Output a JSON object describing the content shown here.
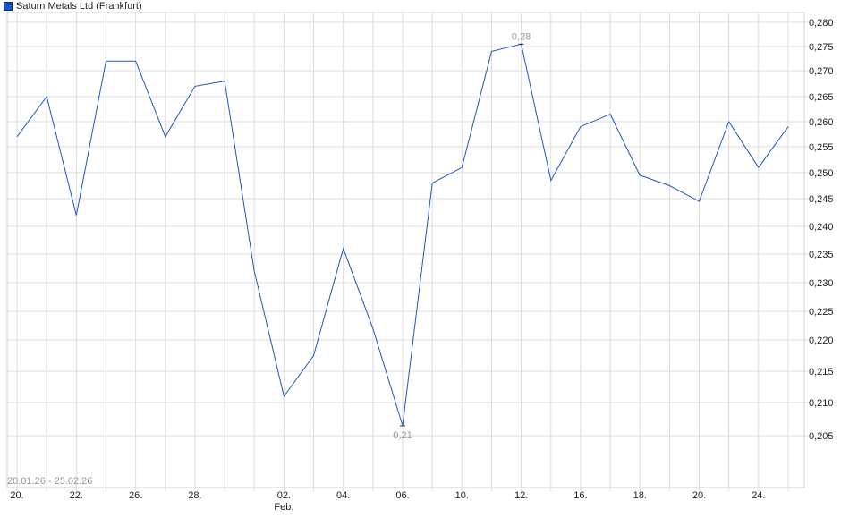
{
  "legend": {
    "label": "Saturn Metals Ltd (Frankfurt)",
    "color": "#1a56c8"
  },
  "date_range": "20.01.26 - 25.02.26",
  "chart_data": {
    "type": "line",
    "title": "",
    "xlabel": "",
    "ylabel": "",
    "grid": true,
    "y_axis_side": "right",
    "ylim": [
      0.2,
      0.28
    ],
    "y_ticks": [
      "0,280",
      "0,275",
      "0,270",
      "0,265",
      "0,260",
      "0,255",
      "0,250",
      "0,245",
      "0,240",
      "0,235",
      "0,230",
      "0,225",
      "0,220",
      "0,215",
      "0,210",
      "0,205"
    ],
    "x": [
      "20.01",
      "21.01",
      "22.01",
      "23.01",
      "26.01",
      "27.01",
      "28.01",
      "29.01",
      "30.01",
      "02.02",
      "03.02",
      "04.02",
      "05.02",
      "06.02",
      "09.02",
      "10.02",
      "11.02",
      "12.02",
      "13.02",
      "16.02",
      "17.02",
      "18.02",
      "19.02",
      "20.02",
      "23.02",
      "24.02",
      "25.02"
    ],
    "x_tick_labels": [
      {
        "index": 0,
        "label": "20."
      },
      {
        "index": 2,
        "label": "22."
      },
      {
        "index": 4,
        "label": "26."
      },
      {
        "index": 6,
        "label": "28."
      },
      {
        "index": 9,
        "label": "02.",
        "sublabel": "Feb."
      },
      {
        "index": 11,
        "label": "04."
      },
      {
        "index": 13,
        "label": "06."
      },
      {
        "index": 15,
        "label": "10."
      },
      {
        "index": 17,
        "label": "12."
      },
      {
        "index": 19,
        "label": "16."
      },
      {
        "index": 21,
        "label": "18."
      },
      {
        "index": 23,
        "label": "20."
      },
      {
        "index": 25,
        "label": "24."
      }
    ],
    "series": [
      {
        "color": "#1a56c8",
        "values": [
          0.257,
          0.265,
          0.242,
          0.272,
          0.272,
          0.257,
          0.267,
          0.268,
          0.232,
          0.211,
          0.2175,
          0.236,
          0.222,
          0.2065,
          0.248,
          0.251,
          0.274,
          0.2755,
          0.2485,
          0.259,
          0.2615,
          0.2495,
          0.2475,
          0.2445,
          0.26,
          0.251,
          0.259
        ]
      }
    ],
    "annotations": [
      {
        "index": 17,
        "label": "0,28",
        "type": "max"
      },
      {
        "index": 13,
        "label": "0,21",
        "type": "min"
      }
    ],
    "annotation_color": "#a0968c"
  }
}
